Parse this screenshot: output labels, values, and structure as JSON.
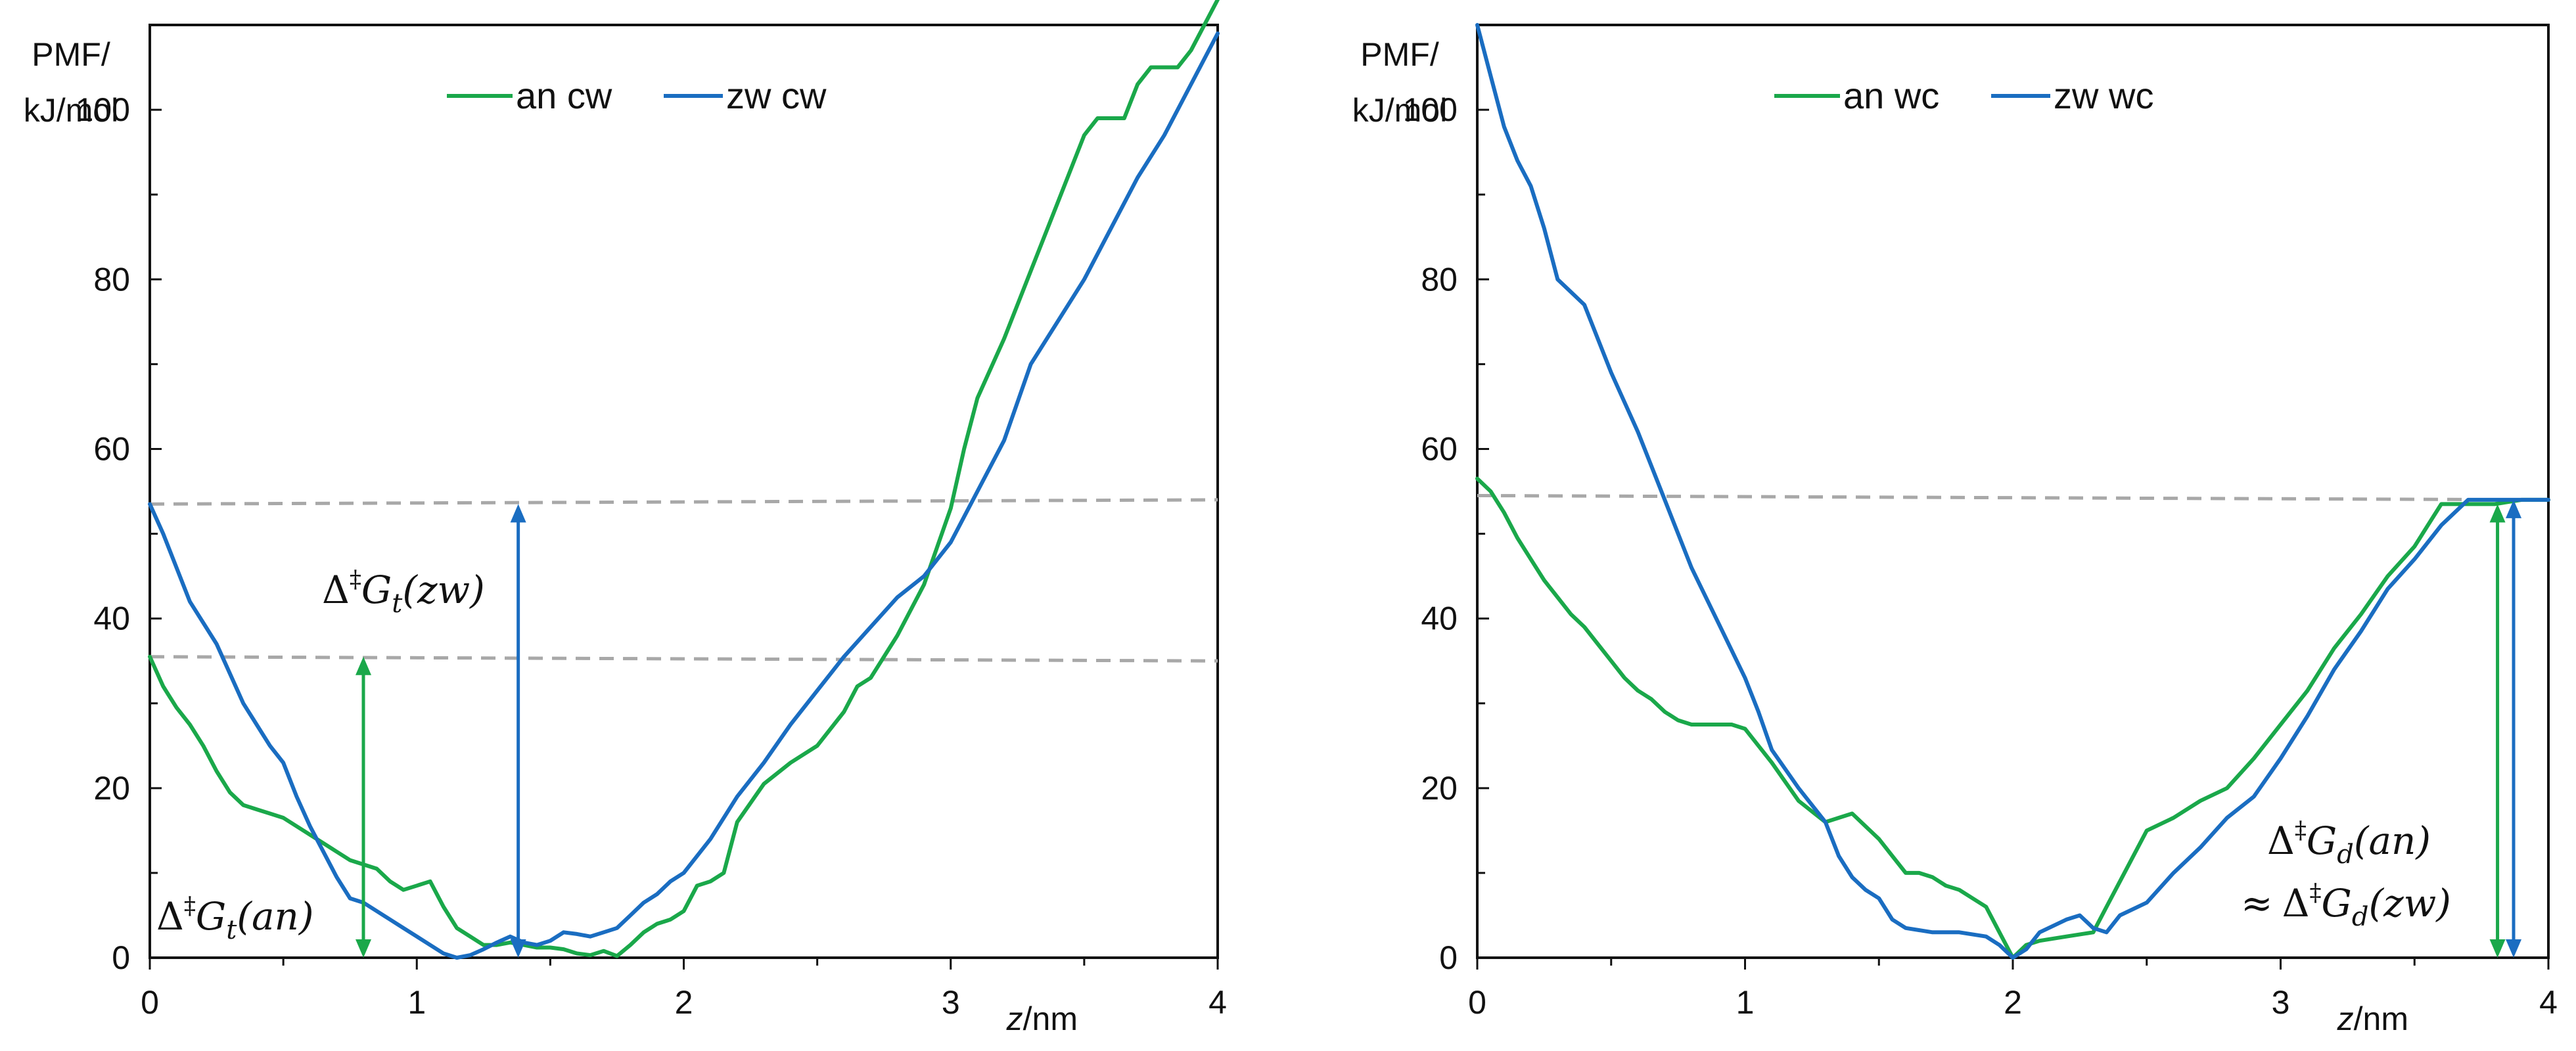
{
  "chart_data": [
    {
      "type": "line",
      "ylabel_line1": "PMF/",
      "ylabel_line2": "kJ/mol",
      "xlabel_var": "z",
      "xlabel_unit": "/nm",
      "xlim": [
        0,
        4
      ],
      "ylim": [
        0,
        110
      ],
      "xticks": [
        0,
        1,
        2,
        3,
        4
      ],
      "yticks": [
        0,
        20,
        40,
        60,
        80,
        100
      ],
      "grid": false,
      "legend_position": "top-center",
      "series": [
        {
          "name": "an cw",
          "color": "#1aa84a",
          "x": [
            0,
            0.05,
            0.1,
            0.15,
            0.2,
            0.25,
            0.3,
            0.35,
            0.4,
            0.45,
            0.5,
            0.55,
            0.6,
            0.65,
            0.7,
            0.75,
            0.8,
            0.85,
            0.9,
            0.95,
            1.0,
            1.05,
            1.1,
            1.15,
            1.2,
            1.25,
            1.3,
            1.35,
            1.4,
            1.45,
            1.5,
            1.55,
            1.6,
            1.65,
            1.7,
            1.75,
            1.8,
            1.85,
            1.9,
            1.95,
            2.0,
            2.05,
            2.1,
            2.15,
            2.2,
            2.3,
            2.4,
            2.5,
            2.6,
            2.65,
            2.7,
            2.8,
            2.9,
            3.0,
            3.05,
            3.1,
            3.2,
            3.3,
            3.4,
            3.5,
            3.55,
            3.65,
            3.7,
            3.75,
            3.85,
            3.9,
            4.0
          ],
          "values": [
            35.5,
            32,
            29.5,
            27.5,
            25,
            22,
            19.5,
            18,
            17.5,
            17,
            16.5,
            15.5,
            14.5,
            13.5,
            12.5,
            11.5,
            11,
            10.5,
            9,
            8,
            8.5,
            9,
            6,
            3.5,
            2.5,
            1.5,
            1.5,
            1.8,
            1.5,
            1.2,
            1.2,
            1.0,
            0.5,
            0.3,
            0.8,
            0.2,
            1.5,
            3,
            4,
            4.5,
            5.5,
            8.5,
            9,
            10,
            16,
            20.5,
            23,
            25,
            29,
            32,
            33,
            38,
            44,
            53,
            60,
            66,
            73,
            81,
            89,
            97,
            99,
            99,
            103,
            105,
            105,
            107,
            113
          ]
        },
        {
          "name": "zw cw",
          "color": "#1a6dc1",
          "x": [
            0,
            0.05,
            0.1,
            0.15,
            0.2,
            0.25,
            0.3,
            0.35,
            0.4,
            0.45,
            0.5,
            0.55,
            0.6,
            0.65,
            0.7,
            0.75,
            0.8,
            0.85,
            0.9,
            0.95,
            1.0,
            1.05,
            1.1,
            1.15,
            1.2,
            1.25,
            1.3,
            1.35,
            1.4,
            1.45,
            1.5,
            1.55,
            1.6,
            1.65,
            1.7,
            1.75,
            1.8,
            1.85,
            1.9,
            1.95,
            2.0,
            2.1,
            2.2,
            2.3,
            2.4,
            2.5,
            2.6,
            2.7,
            2.8,
            2.9,
            3.0,
            3.1,
            3.2,
            3.3,
            3.4,
            3.5,
            3.6,
            3.7,
            3.8,
            3.9,
            4.0
          ],
          "values": [
            53.5,
            50,
            46,
            42,
            39.5,
            37,
            33.5,
            30,
            27.5,
            25,
            23,
            19,
            15.5,
            12.5,
            9.5,
            7,
            6.5,
            5.5,
            4.5,
            3.5,
            2.5,
            1.5,
            0.5,
            0,
            0.3,
            1.0,
            1.8,
            2.5,
            1.8,
            1.5,
            2.0,
            3.0,
            2.8,
            2.5,
            3.0,
            3.5,
            5.0,
            6.5,
            7.5,
            9,
            10,
            14,
            19,
            23,
            27.5,
            31.5,
            35.5,
            39,
            42.5,
            45,
            49,
            55,
            61,
            70,
            75,
            80,
            86,
            92,
            97,
            103,
            109
          ]
        }
      ],
      "reference_lines": [
        {
          "y_start": 53.5,
          "y_end": 54
        },
        {
          "y_start": 35.5,
          "y_end": 35
        }
      ],
      "arrows": [
        {
          "color": "#1aa84a",
          "x": 0.8,
          "y_from": 0,
          "y_to": 35.5
        },
        {
          "color": "#1a6dc1",
          "x": 1.38,
          "y_from": 0,
          "y_to": 53.5
        }
      ],
      "annotations": [
        {
          "id": "zw",
          "prefix": "Δ",
          "dagger": "‡",
          "G": "G",
          "sub": "t",
          "arg": "(zw)"
        },
        {
          "id": "an",
          "prefix": "Δ",
          "dagger": "‡",
          "G": "G",
          "sub": "t",
          "arg": "(an)"
        }
      ]
    },
    {
      "type": "line",
      "ylabel_line1": "PMF/",
      "ylabel_line2": "kJ/mol",
      "xlabel_var": "z",
      "xlabel_unit": "/nm",
      "xlim": [
        0,
        4
      ],
      "ylim": [
        0,
        110
      ],
      "xticks": [
        0,
        1,
        2,
        3,
        4
      ],
      "yticks": [
        0,
        20,
        40,
        60,
        80,
        100
      ],
      "grid": false,
      "legend_position": "top-center",
      "series": [
        {
          "name": "an wc",
          "color": "#1aa84a",
          "x": [
            0,
            0.05,
            0.1,
            0.15,
            0.2,
            0.25,
            0.3,
            0.35,
            0.4,
            0.45,
            0.5,
            0.55,
            0.6,
            0.65,
            0.7,
            0.75,
            0.8,
            0.85,
            0.9,
            0.95,
            1.0,
            1.05,
            1.1,
            1.2,
            1.3,
            1.35,
            1.4,
            1.45,
            1.5,
            1.55,
            1.6,
            1.65,
            1.7,
            1.75,
            1.8,
            1.85,
            1.9,
            1.95,
            2.0,
            2.05,
            2.1,
            2.2,
            2.3,
            2.35,
            2.4,
            2.5,
            2.6,
            2.7,
            2.8,
            2.9,
            3.0,
            3.1,
            3.2,
            3.3,
            3.4,
            3.5,
            3.55,
            3.6,
            3.7,
            3.8,
            3.9,
            4.0
          ],
          "values": [
            56.5,
            55,
            52.5,
            49.5,
            47,
            44.5,
            42.5,
            40.5,
            39,
            37,
            35,
            33,
            31.5,
            30.5,
            29,
            28,
            27.5,
            27.5,
            27.5,
            27.5,
            27,
            25,
            23,
            18.5,
            16,
            16.5,
            17,
            15.5,
            14,
            12,
            10,
            10,
            9.5,
            8.5,
            8,
            7,
            6,
            3,
            0,
            1.5,
            2,
            2.5,
            3,
            6,
            9,
            15,
            16.5,
            18.5,
            20,
            23.5,
            27.5,
            31.5,
            36.5,
            40.5,
            45,
            48.5,
            51,
            53.5,
            53.5,
            53.5,
            54,
            54
          ]
        },
        {
          "name": "zw wc",
          "color": "#1a6dc1",
          "x": [
            0,
            0.05,
            0.1,
            0.15,
            0.2,
            0.25,
            0.3,
            0.35,
            0.4,
            0.45,
            0.5,
            0.6,
            0.7,
            0.8,
            0.9,
            1.0,
            1.05,
            1.1,
            1.2,
            1.3,
            1.35,
            1.4,
            1.45,
            1.5,
            1.55,
            1.6,
            1.7,
            1.8,
            1.9,
            1.95,
            2.0,
            2.05,
            2.1,
            2.2,
            2.25,
            2.3,
            2.35,
            2.4,
            2.5,
            2.6,
            2.7,
            2.8,
            2.9,
            3.0,
            3.1,
            3.2,
            3.3,
            3.4,
            3.5,
            3.6,
            3.7,
            3.8,
            3.9,
            4.0
          ],
          "values": [
            110,
            104,
            98,
            94,
            91,
            86,
            80,
            78.5,
            77,
            73,
            69,
            62,
            54,
            46,
            39.5,
            33,
            29,
            24.5,
            20,
            16,
            12,
            9.5,
            8,
            7,
            4.5,
            3.5,
            3,
            3,
            2.5,
            1.5,
            0,
            1,
            3,
            4.5,
            5,
            3.5,
            3,
            5,
            6.5,
            10,
            13,
            16.5,
            19,
            23.5,
            28.5,
            34,
            38.5,
            43.5,
            47,
            51,
            54,
            54,
            54,
            54
          ]
        }
      ],
      "reference_lines": [
        {
          "y_start": 54.5,
          "y_end": 54
        }
      ],
      "arrows": [
        {
          "color": "#1aa84a",
          "x": 3.81,
          "y_from": 0,
          "y_to": 53.5
        },
        {
          "color": "#1a6dc1",
          "x": 3.87,
          "y_from": 0,
          "y_to": 54
        }
      ],
      "annotations": [
        {
          "id": "an",
          "prefix": "Δ",
          "dagger": "‡",
          "G": "G",
          "sub": "d",
          "arg": "(an)"
        },
        {
          "id": "zw",
          "approx": "≈",
          "prefix": "Δ",
          "dagger": "‡",
          "G": "G",
          "sub": "d",
          "arg": "(zw)"
        }
      ]
    }
  ]
}
